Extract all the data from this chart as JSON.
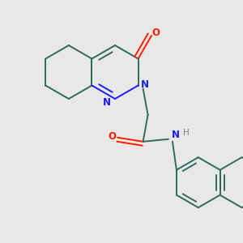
{
  "bg_color": "#e8e8e8",
  "bond_color": "#2d6b5e",
  "n_color": "#1a1aff",
  "o_color": "#ff1a00",
  "h_color": "#7a7a7a",
  "lw": 1.4,
  "figsize": [
    3.0,
    3.0
  ],
  "dpi": 100,
  "xlim": [
    0,
    300
  ],
  "ylim": [
    0,
    300
  ]
}
